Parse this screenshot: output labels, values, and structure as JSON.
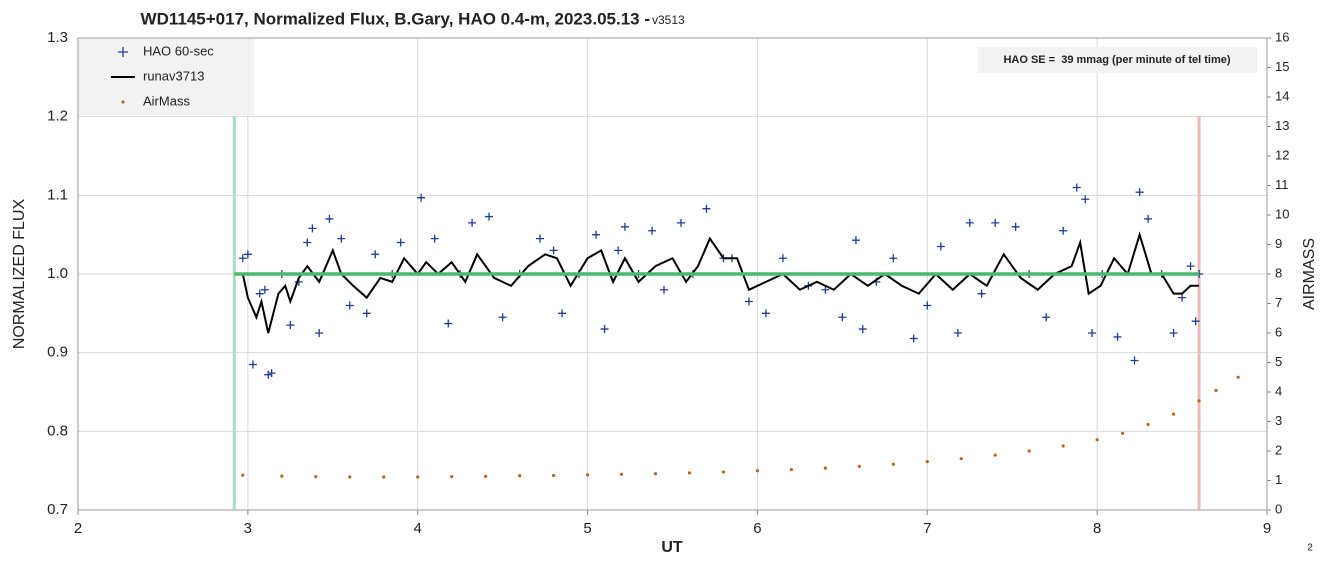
{
  "chart_data": {
    "type": "scatter",
    "title": "WD1145+017, Normalized Flux, B.Gary, HAO 0.4-m, 2023.05.13 - ",
    "version": "v3513",
    "x_label": "UT",
    "y_label": "NORMALIZED FLUX",
    "y2_label": "AIRMASS",
    "annotation": "HAO SE =  39 mmag (per minute of tel time)",
    "page_number": "2",
    "xlim": [
      2,
      9
    ],
    "xticks": [
      2,
      3,
      4,
      5,
      6,
      7,
      8,
      9
    ],
    "ylim": [
      0.7,
      1.3
    ],
    "yticks": [
      0.7,
      0.8,
      0.9,
      {
        "value": 1,
        "label": "1.0"
      },
      1.1,
      1.2,
      1.3
    ],
    "y2lim": [
      0,
      16
    ],
    "y2ticks": [
      0,
      1,
      2,
      3,
      4,
      5,
      6,
      7,
      8,
      9,
      10,
      11,
      12,
      13,
      14,
      15,
      16
    ],
    "grid": true,
    "legend": "upper left",
    "vlines": [
      {
        "x": 2.92,
        "color": "#a9dcc0"
      },
      {
        "x": 8.6,
        "color": "#efb8b8"
      }
    ],
    "hline": {
      "y": 1,
      "x1": 2.92,
      "x2": 8.6,
      "color": "#4cb86f"
    },
    "series": [
      {
        "name": "HAO 60-sec",
        "kind": "scatter",
        "color": "#1f3c96",
        "x": [
          2.97,
          3.0,
          3.03,
          3.07,
          3.1,
          3.12,
          3.14,
          3.2,
          3.25,
          3.3,
          3.35,
          3.38,
          3.42,
          3.48,
          3.55,
          3.6,
          3.7,
          3.75,
          3.85,
          3.9,
          4.02,
          4.1,
          4.18,
          4.25,
          4.32,
          4.42,
          4.5,
          4.6,
          4.72,
          4.8,
          4.85,
          4.95,
          5.05,
          5.1,
          5.18,
          5.22,
          5.3,
          5.38,
          5.45,
          5.55,
          5.62,
          5.7,
          5.8,
          5.85,
          5.95,
          6.05,
          6.15,
          6.3,
          6.4,
          6.5,
          6.58,
          6.62,
          6.7,
          6.8,
          6.92,
          7.0,
          7.08,
          7.18,
          7.25,
          7.32,
          7.4,
          7.52,
          7.6,
          7.7,
          7.8,
          7.88,
          7.93,
          7.97,
          8.03,
          8.12,
          8.22,
          8.25,
          8.3,
          8.38,
          8.45,
          8.5,
          8.55,
          8.58,
          8.6
        ],
        "values": [
          1.02,
          1.025,
          0.885,
          0.975,
          0.98,
          0.872,
          0.874,
          1.0,
          0.935,
          0.99,
          1.04,
          1.058,
          0.925,
          1.07,
          1.045,
          0.96,
          0.95,
          1.025,
          1.0,
          1.04,
          1.097,
          1.045,
          0.937,
          1.0,
          1.065,
          1.073,
          0.945,
          1.0,
          1.045,
          1.03,
          0.95,
          1.0,
          1.05,
          0.93,
          1.03,
          1.06,
          1.0,
          1.055,
          0.98,
          1.065,
          1.0,
          1.083,
          1.02,
          1.02,
          0.965,
          0.95,
          1.02,
          0.985,
          0.98,
          0.945,
          1.043,
          0.93,
          0.99,
          1.02,
          0.918,
          0.96,
          1.035,
          0.925,
          1.065,
          0.975,
          1.065,
          1.06,
          1.0,
          0.945,
          1.055,
          1.11,
          1.095,
          0.925,
          1.0,
          0.92,
          0.89,
          1.104,
          1.07,
          1.0,
          0.925,
          0.97,
          1.01,
          0.94,
          1.0
        ]
      },
      {
        "name": "runav3713",
        "kind": "line",
        "color": "#000000",
        "x": [
          2.97,
          3.0,
          3.05,
          3.08,
          3.12,
          3.18,
          3.22,
          3.25,
          3.3,
          3.35,
          3.42,
          3.5,
          3.55,
          3.62,
          3.7,
          3.78,
          3.85,
          3.92,
          4.0,
          4.05,
          4.12,
          4.2,
          4.28,
          4.35,
          4.45,
          4.55,
          4.65,
          4.75,
          4.82,
          4.9,
          5.0,
          5.08,
          5.15,
          5.22,
          5.3,
          5.4,
          5.5,
          5.58,
          5.65,
          5.72,
          5.8,
          5.88,
          5.95,
          6.05,
          6.15,
          6.25,
          6.35,
          6.45,
          6.55,
          6.65,
          6.75,
          6.85,
          6.95,
          7.05,
          7.15,
          7.25,
          7.35,
          7.45,
          7.55,
          7.65,
          7.75,
          7.85,
          7.9,
          7.95,
          8.02,
          8.1,
          8.18,
          8.25,
          8.32,
          8.38,
          8.45,
          8.5,
          8.55,
          8.6
        ],
        "values": [
          1.0,
          0.97,
          0.945,
          0.965,
          0.925,
          0.975,
          0.985,
          0.965,
          0.995,
          1.01,
          0.99,
          1.03,
          1.0,
          0.985,
          0.97,
          0.995,
          0.99,
          1.02,
          1.0,
          1.015,
          1.0,
          1.015,
          0.99,
          1.025,
          0.995,
          0.985,
          1.01,
          1.025,
          1.02,
          0.985,
          1.02,
          1.03,
          0.99,
          1.02,
          0.99,
          1.01,
          1.02,
          0.99,
          1.01,
          1.045,
          1.02,
          1.02,
          0.98,
          0.99,
          1.0,
          0.98,
          0.99,
          0.98,
          1.0,
          0.985,
          1.0,
          0.985,
          0.975,
          1.0,
          0.98,
          1.0,
          0.985,
          1.025,
          0.995,
          0.98,
          1.0,
          1.01,
          1.04,
          0.975,
          0.985,
          1.02,
          1.0,
          1.05,
          1.0,
          1.0,
          0.975,
          0.975,
          0.985,
          0.985
        ]
      },
      {
        "name": "AirMass",
        "kind": "dots",
        "axis": "y2",
        "color": "#b5651d",
        "x": [
          2.97,
          3.2,
          3.4,
          3.6,
          3.8,
          4.0,
          4.2,
          4.4,
          4.6,
          4.8,
          5.0,
          5.2,
          5.4,
          5.6,
          5.8,
          6.0,
          6.2,
          6.4,
          6.6,
          6.8,
          7.0,
          7.2,
          7.4,
          7.6,
          7.8,
          8.0,
          8.15,
          8.3,
          8.45,
          8.6,
          8.7,
          8.83
        ],
        "values": [
          1.18,
          1.15,
          1.13,
          1.12,
          1.12,
          1.12,
          1.13,
          1.14,
          1.16,
          1.17,
          1.19,
          1.21,
          1.23,
          1.26,
          1.29,
          1.33,
          1.37,
          1.42,
          1.48,
          1.55,
          1.64,
          1.74,
          1.86,
          2.0,
          2.17,
          2.38,
          2.6,
          2.9,
          3.25,
          3.7,
          4.05,
          4.5
        ]
      }
    ]
  }
}
